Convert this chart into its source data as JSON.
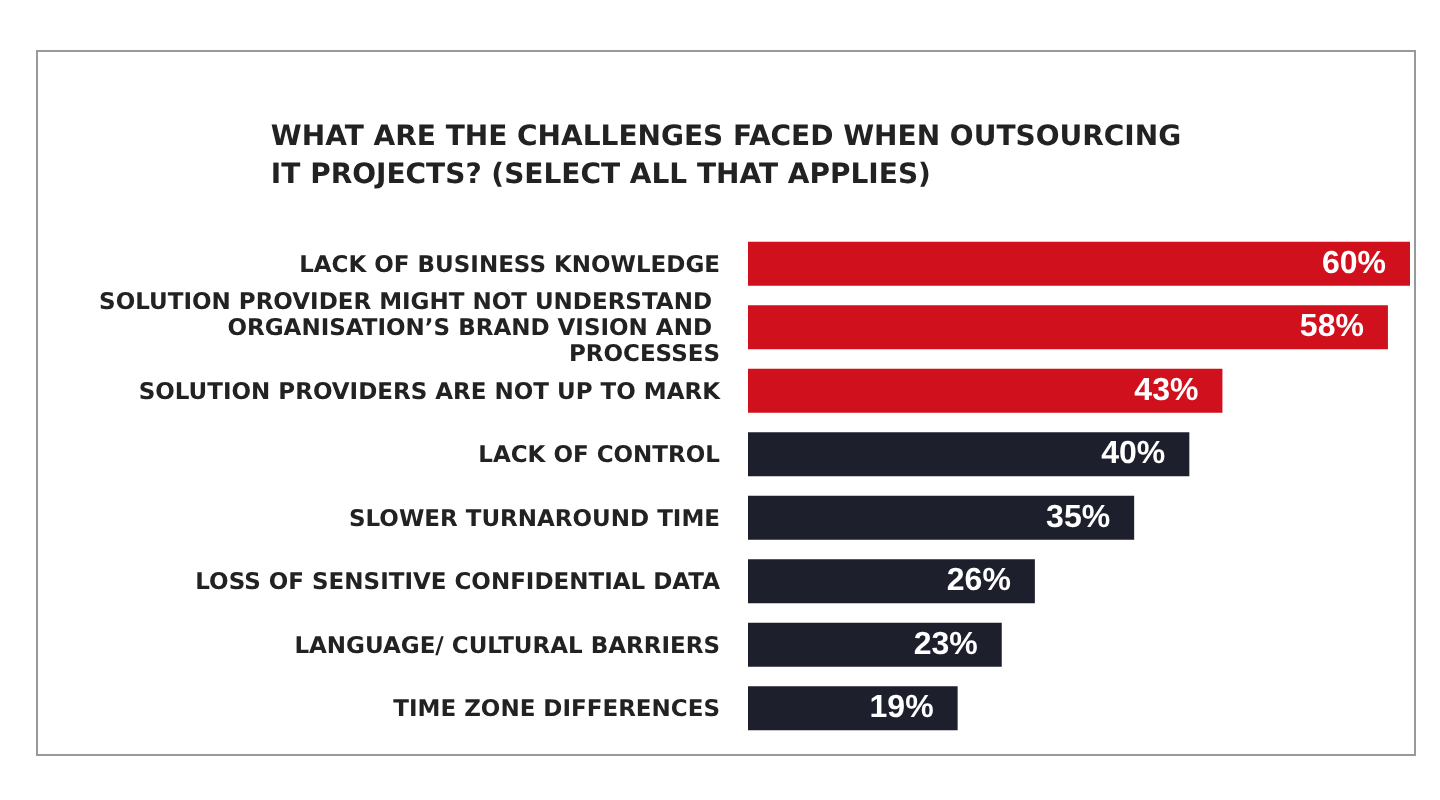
{
  "chart_data": {
    "type": "bar",
    "orientation": "horizontal",
    "title": "WHAT ARE THE CHALLENGES FACED WHEN OUTSOURCING\nIT PROJECTS? (SELECT ALL THAT APPLIES)",
    "categories": [
      "LACK OF BUSINESS KNOWLEDGE",
      "SOLUTION PROVIDER MIGHT NOT UNDERSTAND ORGANISATION’S BRAND VISION AND PROCESSES",
      "SOLUTION PROVIDERS ARE NOT UP TO MARK",
      "LACK OF CONTROL",
      "SLOWER TURNAROUND TIME",
      "LOSS OF SENSITIVE CONFIDENTIAL DATA",
      "LANGUAGE/ CULTURAL BARRIERS",
      "TIME ZONE DIFFERENCES"
    ],
    "values": [
      60,
      58,
      43,
      40,
      35,
      26,
      23,
      19
    ],
    "value_labels": [
      "60%",
      "58%",
      "43%",
      "40%",
      "35%",
      "26%",
      "23%",
      "19%"
    ],
    "colors": [
      "#d0101c",
      "#d0101c",
      "#d0101c",
      "#1d1f2c",
      "#1d1f2c",
      "#1d1f2c",
      "#1d1f2c",
      "#1d1f2c"
    ]
  }
}
